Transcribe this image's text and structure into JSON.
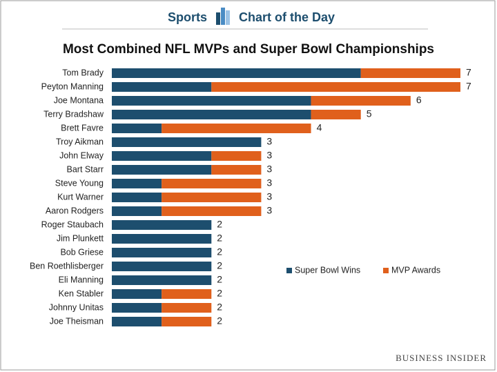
{
  "header": {
    "left": "Sports",
    "right": "Chart of the Day"
  },
  "brand": "BUSINESS INSIDER",
  "chart_data": {
    "type": "stacked-barh",
    "title": "Most Combined NFL MVPs and Super Bowl Championships",
    "categories": [
      "Tom Brady",
      "Peyton Manning",
      "Joe Montana",
      "Terry Bradshaw",
      "Brett Favre",
      "Troy Aikman",
      "John Elway",
      "Bart Starr",
      "Steve Young",
      "Kurt Warner",
      "Aaron Rodgers",
      "Roger Staubach",
      "Jim Plunkett",
      "Bob Griese",
      "Ben Roethlisberger",
      "Eli Manning",
      "Ken Stabler",
      "Johnny Unitas",
      "Joe Theisman"
    ],
    "series": [
      {
        "name": "Super Bowl Wins",
        "color": "#1d4e6e",
        "values": [
          5,
          2,
          4,
          4,
          1,
          3,
          2,
          2,
          1,
          1,
          1,
          2,
          2,
          2,
          2,
          2,
          1,
          1,
          1
        ]
      },
      {
        "name": "MVP Awards",
        "color": "#e0601c",
        "values": [
          2,
          5,
          2,
          1,
          3,
          0,
          1,
          1,
          2,
          2,
          2,
          0,
          0,
          0,
          0,
          0,
          1,
          1,
          1
        ]
      }
    ],
    "totals": [
      7,
      7,
      6,
      5,
      4,
      3,
      3,
      3,
      3,
      3,
      3,
      2,
      2,
      2,
      2,
      2,
      2,
      2,
      2
    ],
    "xlim": [
      0,
      7
    ]
  }
}
